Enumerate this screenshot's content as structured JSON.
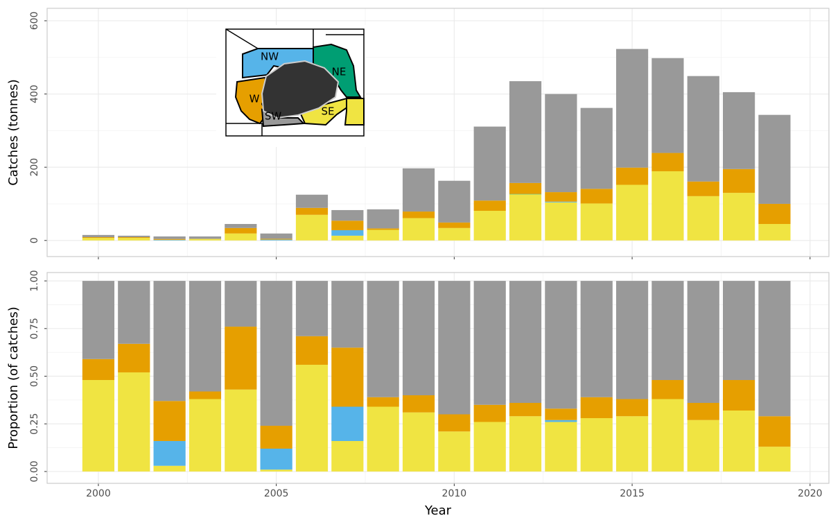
{
  "chart_data": [
    {
      "type": "bar",
      "stacked": true,
      "y_label": "Catches (tonnes)",
      "x": [
        2000,
        2001,
        2002,
        2003,
        2004,
        2005,
        2006,
        2007,
        2008,
        2009,
        2010,
        2011,
        2012,
        2013,
        2014,
        2015,
        2016,
        2017,
        2018,
        2019
      ],
      "xlim": [
        1998.56,
        2020.53
      ],
      "xticks": [
        2000,
        2005,
        2010,
        2015,
        2020
      ],
      "ylim": [
        -44,
        634
      ],
      "yticks": [
        0,
        200,
        400,
        600
      ],
      "grid": true,
      "series": [
        {
          "name": "SE",
          "color": "#f0e442",
          "values": [
            7,
            7,
            0.3,
            4,
            19,
            0.2,
            70,
            13,
            29,
            61,
            34,
            81,
            126,
            104,
            101,
            152,
            189,
            121,
            130,
            45
          ]
        },
        {
          "name": "NE",
          "color": "#009e73",
          "values": [
            0,
            0,
            0,
            0,
            0,
            0,
            0,
            0,
            0,
            0,
            0,
            0,
            1,
            0,
            0,
            0,
            0,
            0,
            0,
            0
          ]
        },
        {
          "name": "NW",
          "color": "#56b4e9",
          "values": [
            0,
            0,
            1.4,
            0,
            0,
            2.1,
            0,
            15,
            0,
            0,
            0,
            0,
            0,
            2,
            0,
            0,
            0,
            0,
            0,
            0
          ]
        },
        {
          "name": "W",
          "color": "#e69f00",
          "values": [
            2,
            2,
            2.3,
            0.5,
            15,
            2.3,
            19,
            26,
            4,
            18,
            15,
            28,
            30,
            26,
            40,
            47,
            50,
            40,
            65,
            55
          ]
        },
        {
          "name": "SW",
          "color": "#999999",
          "values": [
            6,
            4,
            7,
            6.5,
            11,
            14.4,
            36,
            29,
            52,
            118,
            114,
            202,
            278,
            268,
            221,
            324,
            259,
            288,
            210,
            243
          ]
        }
      ]
    },
    {
      "type": "bar",
      "stacked": true,
      "y_label": "Proportion (of catches)",
      "x_label": "Year",
      "x": [
        2000,
        2001,
        2002,
        2003,
        2004,
        2005,
        2006,
        2007,
        2008,
        2009,
        2010,
        2011,
        2012,
        2013,
        2014,
        2015,
        2016,
        2017,
        2018,
        2019
      ],
      "xlim": [
        1998.56,
        2020.53
      ],
      "xticks": [
        2000,
        2005,
        2010,
        2015,
        2020
      ],
      "ylim": [
        -0.062,
        1.044
      ],
      "yticks": [
        {
          "value": 0,
          "label": "0.00"
        },
        {
          "value": 0.25,
          "label": "0.25"
        },
        {
          "value": 0.5,
          "label": "0.50"
        },
        {
          "value": 0.75,
          "label": "0.75"
        },
        {
          "value": 1,
          "label": "1.00"
        }
      ],
      "grid": true,
      "series": [
        {
          "color": "#f0e442",
          "values": [
            0.48,
            0.52,
            0.03,
            0.38,
            0.43,
            0.01,
            0.56,
            0.16,
            0.34,
            0.31,
            0.21,
            0.26,
            0.29,
            0.26,
            0.28,
            0.29,
            0.38,
            0.27,
            0.32,
            0.13
          ]
        },
        {
          "color": "#56b4e9",
          "values": [
            0,
            0,
            0.13,
            0,
            0,
            0.11,
            0,
            0.18,
            0,
            0,
            0,
            0,
            0,
            0.01,
            0,
            0,
            0,
            0,
            0,
            0
          ]
        },
        {
          "color": "#e69f00",
          "values": [
            0.11,
            0.15,
            0.21,
            0.04,
            0.33,
            0.12,
            0.15,
            0.31,
            0.05,
            0.09,
            0.09,
            0.09,
            0.07,
            0.06,
            0.11,
            0.09,
            0.1,
            0.09,
            0.16,
            0.16
          ]
        },
        {
          "color": "#999999",
          "values": [
            0.41,
            0.33,
            0.63,
            0.58,
            0.24,
            0.76,
            0.29,
            0.35,
            0.61,
            0.6,
            0.7,
            0.65,
            0.64,
            0.67,
            0.61,
            0.62,
            0.52,
            0.64,
            0.52,
            0.71
          ]
        }
      ]
    }
  ]
}
